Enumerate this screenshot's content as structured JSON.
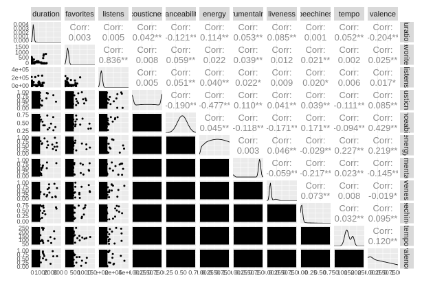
{
  "chart_data": {
    "type": "scatter-matrix",
    "variables": [
      "duration",
      "favorites",
      "listens",
      "acousticness",
      "danceability",
      "energy",
      "instrumentalness",
      "liveness",
      "speechiness",
      "tempo",
      "valence"
    ],
    "upper_panel_label": "Corr:",
    "upper_values": {
      "0": {
        "1": "0.003",
        "2": "0.005",
        "3": "0.042**",
        "4": "-0.121**",
        "5": "0.114**",
        "6": "0.053**",
        "7": "0.085**",
        "8": "0.001",
        "9": "0.052**",
        "10": "-0.204**"
      },
      "1": {
        "2": "0.836**",
        "3": "0.008",
        "4": "0.059**",
        "5": "0.022",
        "6": "0.039**",
        "7": "0.012",
        "8": "0.021**",
        "9": "0.002",
        "10": "0.025**"
      },
      "2": {
        "3": "0.005",
        "4": "0.051**",
        "5": "0.040**",
        "6": "0.022*",
        "7": "0.009",
        "8": "0.020*",
        "9": "0.006",
        "10": "0.017*"
      },
      "3": {
        "4": "-0.190**",
        "5": "-0.477**",
        "6": "0.110**",
        "7": "0.041**",
        "8": "0.039**",
        "9": "-0.111**",
        "10": "0.085**"
      },
      "4": {
        "5": "0.045**",
        "6": "-0.118**",
        "7": "-0.171**",
        "8": "0.171**",
        "9": "-0.094**",
        "10": "0.429**"
      },
      "5": {
        "6": "0.003",
        "7": "0.046**",
        "8": "-0.029**",
        "9": "0.227**",
        "10": "0.219**"
      },
      "6": {
        "7": "-0.059**",
        "8": "-0.217**",
        "9": "0.023**",
        "10": "-0.145**"
      },
      "7": {
        "8": "0.073**",
        "9": "0.008",
        "10": "-0.019*"
      },
      "8": {
        "9": "0.032**",
        "10": "0.095**"
      },
      "9": {
        "10": "0.120**"
      }
    },
    "column_strip_labels": [
      "duration",
      "favorites",
      "listens",
      "acousticness",
      "danceability",
      "energy",
      "instrumentalness",
      "liveness",
      "speechiness",
      "tempo",
      "valence"
    ],
    "row_strip_labels": [
      "duration",
      "favorites",
      "listens",
      "acousticness",
      "danceability",
      "energy",
      "instrumentalness",
      "liveness",
      "speechiness",
      "tempo",
      "valence"
    ],
    "y_tick_labels": [
      [
        "0.004",
        "0.003",
        "0.002",
        "0.001",
        "0.000"
      ],
      [
        "1500",
        "1000",
        "500",
        "0"
      ],
      [
        "4e+05",
        "2e+05",
        "0e+00"
      ],
      [
        "1.00",
        "0.75",
        "0.50",
        "0.25",
        "0.00"
      ],
      [
        "0.75",
        "0.50",
        "0.25"
      ],
      [
        "1.00",
        "0.75",
        "0.50",
        "0.25",
        "0.00"
      ],
      [
        "1.00",
        "0.75",
        "0.50",
        "0.25",
        "0.00"
      ],
      [
        "1.00",
        "0.75",
        "0.50",
        "0.25",
        "0.00"
      ],
      [
        "0.75",
        "0.50",
        "0.25",
        "0.00"
      ],
      [
        "250",
        "200",
        "150",
        "100",
        "50"
      ],
      [
        "1.00",
        "0.75",
        "0.50",
        "0.25",
        "0.00"
      ]
    ],
    "x_tick_labels": [
      [
        "0",
        "1000",
        "2000",
        "3000"
      ],
      [
        "0",
        "500",
        "1000",
        "1500"
      ],
      [
        "0e+00",
        "2e+05",
        "4e+05"
      ],
      [
        "0.00",
        "0.25",
        "0.50",
        "0.75",
        "1.00"
      ],
      [
        "0.25",
        "0.50",
        "0.75"
      ],
      [
        "0.00",
        "0.25",
        "0.50",
        "0.75",
        "1.00"
      ],
      [
        "0.00",
        "0.25",
        "0.50",
        "0.75",
        "1.00"
      ],
      [
        "0.00",
        "0.25",
        "0.50",
        "0.75",
        "1.00"
      ],
      [
        "0.00",
        "0.25",
        "0.50",
        "0.75"
      ],
      [
        "50",
        "100",
        "150",
        "200",
        "250"
      ],
      [
        "0.00",
        "0.25",
        "0.50",
        "0.75",
        "1.00"
      ]
    ],
    "grid": true
  },
  "colors": {
    "strip": "#d9d9d9",
    "panel": "#ebebeb",
    "points": "#000000",
    "corr_text": "#8a8a8a"
  }
}
